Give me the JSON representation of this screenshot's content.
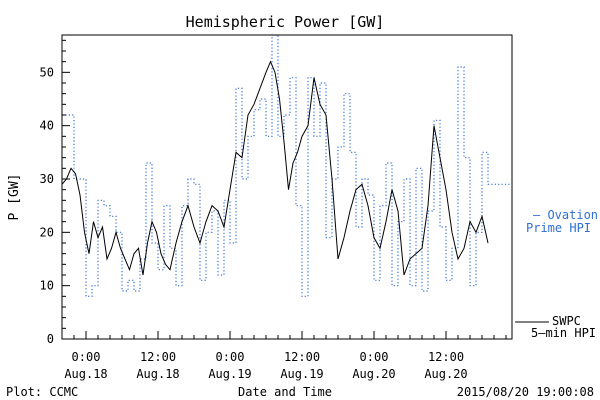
{
  "chart_data": {
    "type": "line",
    "title": "Hemispheric Power [GW]",
    "ylabel": "P [GW]",
    "xlabel": "Date and Time",
    "ylim": [
      0,
      57
    ],
    "y_ticks": [
      0,
      10,
      20,
      30,
      40,
      50
    ],
    "xlim": [
      "2015-08-17 20:00",
      "2015-08-20 23:00"
    ],
    "x_ticks": [
      {
        "t": "2015-08-18 00:00",
        "line1": "0:00",
        "line2": "Aug.18"
      },
      {
        "t": "2015-08-18 12:00",
        "line1": "12:00",
        "line2": "Aug.18"
      },
      {
        "t": "2015-08-19 00:00",
        "line1": "0:00",
        "line2": "Aug.19"
      },
      {
        "t": "2015-08-19 12:00",
        "line1": "12:00",
        "line2": "Aug.19"
      },
      {
        "t": "2015-08-20 00:00",
        "line1": "0:00",
        "line2": "Aug.20"
      },
      {
        "t": "2015-08-20 12:00",
        "line1": "12:00",
        "line2": "Aug.20"
      }
    ],
    "series": [
      {
        "name": "SWPC 5-min HPI",
        "legend_line1": "SWPC",
        "legend_line2": "5–min HPI",
        "style": "solid",
        "color": "#000000",
        "x": [
          "2015-08-17 20:00",
          "2015-08-17 20:45",
          "2015-08-17 21:30",
          "2015-08-17 22:15",
          "2015-08-17 23:00",
          "2015-08-17 23:45",
          "2015-08-18 00:30",
          "2015-08-18 01:15",
          "2015-08-18 02:00",
          "2015-08-18 02:45",
          "2015-08-18 03:30",
          "2015-08-18 04:15",
          "2015-08-18 05:00",
          "2015-08-18 05:45",
          "2015-08-18 06:30",
          "2015-08-18 07:15",
          "2015-08-18 08:00",
          "2015-08-18 08:45",
          "2015-08-18 09:30",
          "2015-08-18 10:15",
          "2015-08-18 11:00",
          "2015-08-18 11:45",
          "2015-08-18 12:30",
          "2015-08-18 13:15",
          "2015-08-18 14:00",
          "2015-08-18 15:00",
          "2015-08-18 16:00",
          "2015-08-18 17:00",
          "2015-08-18 18:00",
          "2015-08-18 19:00",
          "2015-08-18 20:00",
          "2015-08-18 21:00",
          "2015-08-18 22:00",
          "2015-08-18 23:00",
          "2015-08-19 00:00",
          "2015-08-19 01:00",
          "2015-08-19 02:00",
          "2015-08-19 03:00",
          "2015-08-19 04:00",
          "2015-08-19 05:00",
          "2015-08-19 06:00",
          "2015-08-19 06:45",
          "2015-08-19 07:30",
          "2015-08-19 08:15",
          "2015-08-19 09:00",
          "2015-08-19 09:45",
          "2015-08-19 10:30",
          "2015-08-19 11:15",
          "2015-08-19 12:00",
          "2015-08-19 13:00",
          "2015-08-19 14:00",
          "2015-08-19 15:00",
          "2015-08-19 16:00",
          "2015-08-19 17:00",
          "2015-08-19 18:00",
          "2015-08-19 19:00",
          "2015-08-19 20:00",
          "2015-08-19 21:00",
          "2015-08-19 22:00",
          "2015-08-19 23:00",
          "2015-08-20 00:00",
          "2015-08-20 01:00",
          "2015-08-20 02:00",
          "2015-08-20 03:00",
          "2015-08-20 04:00",
          "2015-08-20 05:00",
          "2015-08-20 06:00",
          "2015-08-20 07:00",
          "2015-08-20 08:00",
          "2015-08-20 09:00",
          "2015-08-20 10:00",
          "2015-08-20 11:00",
          "2015-08-20 12:00",
          "2015-08-20 13:00",
          "2015-08-20 14:00",
          "2015-08-20 15:00",
          "2015-08-20 16:00",
          "2015-08-20 17:00",
          "2015-08-20 18:00",
          "2015-08-20 19:00"
        ],
        "y": [
          29,
          30,
          32,
          31,
          27,
          20,
          16,
          22,
          19,
          21,
          15,
          17,
          20,
          17,
          15,
          13,
          16,
          17,
          12,
          18,
          22,
          20,
          16,
          14,
          13,
          18,
          22,
          25,
          21,
          18,
          22,
          25,
          24,
          21,
          28,
          35,
          34,
          42,
          44,
          47,
          50,
          52,
          50,
          45,
          37,
          28,
          33,
          35,
          38,
          40,
          49,
          44,
          42,
          30,
          15,
          19,
          24,
          28,
          29,
          25,
          19,
          17,
          22,
          28,
          24,
          12,
          15,
          16,
          17,
          25,
          40,
          34,
          28,
          20,
          15,
          17,
          22,
          20,
          23,
          18
        ]
      },
      {
        "name": "Ovation Prime HPI",
        "legend_line1": "– Ovation",
        "legend_line2": "Prime HPI",
        "style": "dotted-step",
        "color": "#2f6fd6",
        "x": [
          "2015-08-17 20:00",
          "2015-08-17 22:00",
          "2015-08-18 00:00",
          "2015-08-18 01:00",
          "2015-08-18 02:00",
          "2015-08-18 03:00",
          "2015-08-18 04:00",
          "2015-08-18 05:00",
          "2015-08-18 06:00",
          "2015-08-18 07:00",
          "2015-08-18 08:00",
          "2015-08-18 09:00",
          "2015-08-18 10:00",
          "2015-08-18 11:00",
          "2015-08-18 12:00",
          "2015-08-18 13:00",
          "2015-08-18 14:00",
          "2015-08-18 15:00",
          "2015-08-18 16:00",
          "2015-08-18 17:00",
          "2015-08-18 18:00",
          "2015-08-18 19:00",
          "2015-08-18 20:00",
          "2015-08-18 21:00",
          "2015-08-18 22:00",
          "2015-08-18 23:00",
          "2015-08-19 00:00",
          "2015-08-19 01:00",
          "2015-08-19 02:00",
          "2015-08-19 03:00",
          "2015-08-19 04:00",
          "2015-08-19 05:00",
          "2015-08-19 06:00",
          "2015-08-19 07:00",
          "2015-08-19 08:00",
          "2015-08-19 09:00",
          "2015-08-19 10:00",
          "2015-08-19 11:00",
          "2015-08-19 12:00",
          "2015-08-19 13:00",
          "2015-08-19 14:00",
          "2015-08-19 15:00",
          "2015-08-19 16:00",
          "2015-08-19 17:00",
          "2015-08-19 18:00",
          "2015-08-19 19:00",
          "2015-08-19 20:00",
          "2015-08-19 21:00",
          "2015-08-19 22:00",
          "2015-08-19 23:00",
          "2015-08-20 00:00",
          "2015-08-20 01:00",
          "2015-08-20 02:00",
          "2015-08-20 03:00",
          "2015-08-20 04:00",
          "2015-08-20 05:00",
          "2015-08-20 06:00",
          "2015-08-20 07:00",
          "2015-08-20 08:00",
          "2015-08-20 09:00",
          "2015-08-20 10:00",
          "2015-08-20 11:00",
          "2015-08-20 12:00",
          "2015-08-20 13:00",
          "2015-08-20 14:00",
          "2015-08-20 15:00",
          "2015-08-20 16:00",
          "2015-08-20 17:00",
          "2015-08-20 18:00",
          "2015-08-20 19:00"
        ],
        "y": [
          42,
          30,
          8,
          10,
          26,
          25,
          23,
          20,
          9,
          11,
          9,
          15,
          33,
          18,
          13,
          25,
          17,
          10,
          25,
          30,
          29,
          11,
          20,
          24,
          12,
          26,
          18,
          47,
          30,
          38,
          43,
          45,
          38,
          57,
          38,
          42,
          49,
          25,
          8,
          49,
          38,
          48,
          19,
          30,
          36,
          46,
          35,
          21,
          30,
          27,
          11,
          25,
          33,
          10,
          22,
          30,
          10,
          32,
          9,
          24,
          41,
          21,
          11,
          17,
          51,
          34,
          10,
          20,
          35,
          29
        ]
      }
    ]
  },
  "footer": {
    "left": "Plot: CCMC",
    "right": "2015/08/20 19:00:08"
  }
}
